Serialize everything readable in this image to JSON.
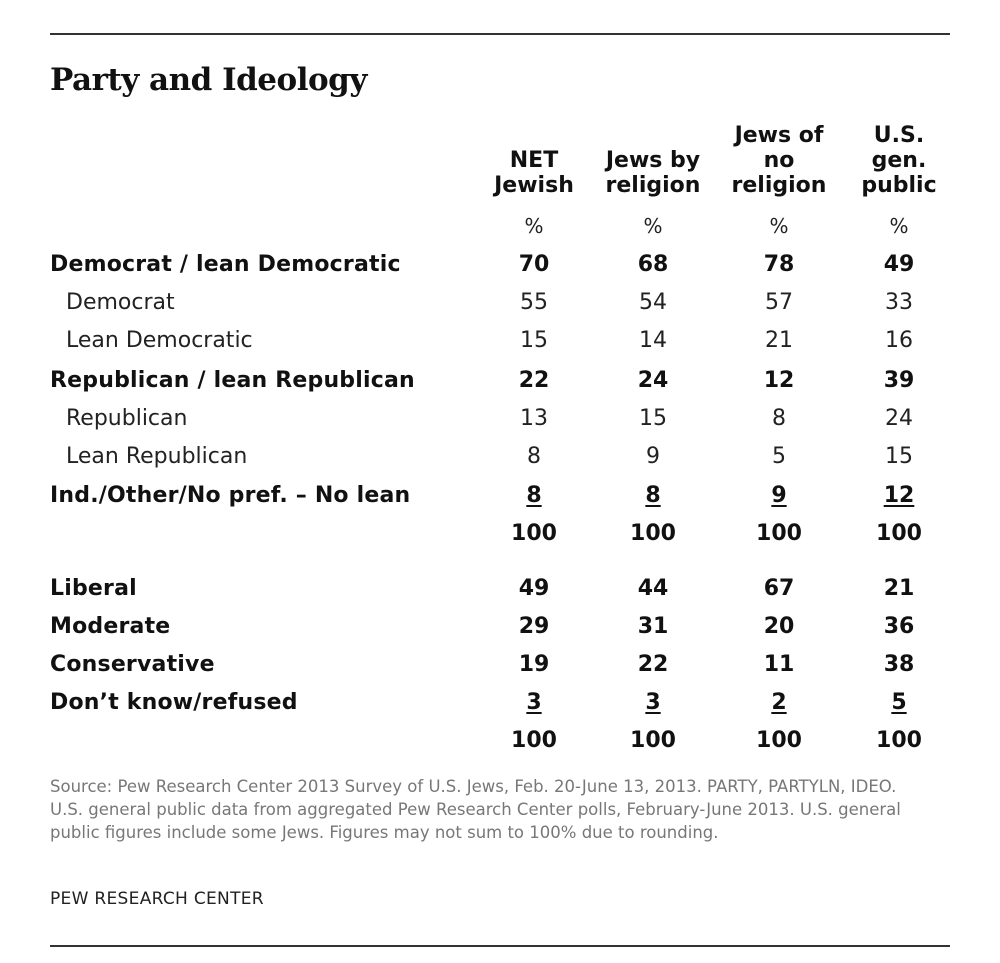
{
  "title": "Party and Ideology",
  "columns": [
    {
      "lines": [
        "NET",
        "Jewish"
      ],
      "unit": "%"
    },
    {
      "lines": [
        "Jews by",
        "religion"
      ],
      "unit": "%"
    },
    {
      "lines": [
        "Jews of",
        "no",
        "religion"
      ],
      "unit": "%"
    },
    {
      "lines": [
        "U.S.",
        "gen.",
        "public"
      ],
      "unit": "%"
    }
  ],
  "rows": [
    {
      "label": "Democrat / lean Democratic",
      "style": "bold",
      "values": [
        "70",
        "68",
        "78",
        "49"
      ],
      "underline": false
    },
    {
      "label": "Democrat",
      "style": "sub",
      "values": [
        "55",
        "54",
        "57",
        "33"
      ],
      "underline": false
    },
    {
      "label": "Lean Democratic",
      "style": "sub",
      "values": [
        "15",
        "14",
        "21",
        "16"
      ],
      "underline": false
    },
    {
      "label": "Republican / lean Republican",
      "style": "bold",
      "values": [
        "22",
        "24",
        "12",
        "39"
      ],
      "underline": false
    },
    {
      "label": "Republican",
      "style": "sub",
      "values": [
        "13",
        "15",
        "8",
        "24"
      ],
      "underline": false
    },
    {
      "label": "Lean Republican",
      "style": "sub",
      "values": [
        "8",
        "9",
        "5",
        "15"
      ],
      "underline": false
    },
    {
      "label": "Ind./Other/No pref. – No lean",
      "style": "bold",
      "values": [
        "8",
        "8",
        "9",
        "12"
      ],
      "underline": true
    },
    {
      "label": "",
      "style": "bold",
      "values": [
        "100",
        "100",
        "100",
        "100"
      ],
      "underline": false
    },
    {
      "label": "Liberal",
      "style": "bold",
      "values": [
        "49",
        "44",
        "67",
        "21"
      ],
      "underline": false
    },
    {
      "label": "Moderate",
      "style": "bold",
      "values": [
        "29",
        "31",
        "20",
        "36"
      ],
      "underline": false
    },
    {
      "label": "Conservative",
      "style": "bold",
      "values": [
        "19",
        "22",
        "11",
        "38"
      ],
      "underline": false
    },
    {
      "label": "Don’t know/refused",
      "style": "bold",
      "values": [
        "3",
        "3",
        "2",
        "5"
      ],
      "underline": true
    },
    {
      "label": "",
      "style": "bold",
      "values": [
        "100",
        "100",
        "100",
        "100"
      ],
      "underline": false
    }
  ],
  "source": "Source: Pew Research Center 2013 Survey of U.S. Jews, Feb. 20-June 13, 2013. PARTY, PARTYLN, IDEO. U.S. general public data from aggregated Pew Research Center polls, February-June 2013. U.S. general public figures include some Jews. Figures may not sum to 100% due to rounding.",
  "brand": "PEW RESEARCH CENTER",
  "chart_data": {
    "type": "table",
    "title": "Party and Ideology",
    "columns": [
      "NET Jewish",
      "Jews by religion",
      "Jews of no religion",
      "U.S. gen. public"
    ],
    "unit": "%",
    "rows": [
      {
        "label": "Democrat / lean Democratic",
        "values": [
          70,
          68,
          78,
          49
        ]
      },
      {
        "label": "Democrat",
        "values": [
          55,
          54,
          57,
          33
        ]
      },
      {
        "label": "Lean Democratic",
        "values": [
          15,
          14,
          21,
          16
        ]
      },
      {
        "label": "Republican / lean Republican",
        "values": [
          22,
          24,
          12,
          39
        ]
      },
      {
        "label": "Republican",
        "values": [
          13,
          15,
          8,
          24
        ]
      },
      {
        "label": "Lean Republican",
        "values": [
          8,
          9,
          5,
          15
        ]
      },
      {
        "label": "Ind./Other/No pref. – No lean",
        "values": [
          8,
          8,
          9,
          12
        ]
      },
      {
        "label": "",
        "values": [
          100,
          100,
          100,
          100
        ]
      },
      {
        "label": "Liberal",
        "values": [
          49,
          44,
          67,
          21
        ]
      },
      {
        "label": "Moderate",
        "values": [
          29,
          31,
          20,
          36
        ]
      },
      {
        "label": "Conservative",
        "values": [
          19,
          22,
          11,
          38
        ]
      },
      {
        "label": "Don’t know/refused",
        "values": [
          3,
          3,
          2,
          5
        ]
      },
      {
        "label": "",
        "values": [
          100,
          100,
          100,
          100
        ]
      }
    ]
  }
}
